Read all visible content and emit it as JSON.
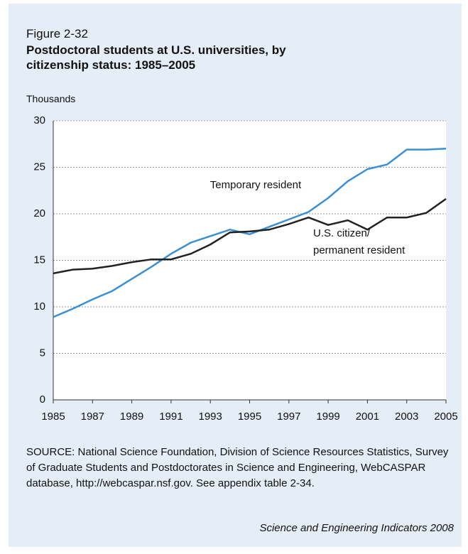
{
  "chart_data": {
    "type": "line",
    "figure_label": "Figure 2-32",
    "title": "Postdoctoral students at U.S. universities, by citizenship status: 1985–2005",
    "y_axis_label": "Thousands",
    "x": [
      1985,
      1986,
      1987,
      1988,
      1989,
      1990,
      1991,
      1992,
      1993,
      1994,
      1995,
      1996,
      1997,
      1998,
      1999,
      2000,
      2001,
      2002,
      2003,
      2004,
      2005
    ],
    "series": [
      {
        "name": "Temporary resident",
        "color": "#3b8fd3",
        "values": [
          8.9,
          9.8,
          10.8,
          11.7,
          13.0,
          14.3,
          15.7,
          16.9,
          17.6,
          18.3,
          17.8,
          18.6,
          19.4,
          20.2,
          21.7,
          23.5,
          24.8,
          25.3,
          26.9,
          26.9,
          27.0
        ]
      },
      {
        "name": "U.S. citizen/\npermanent resident",
        "color": "#222222",
        "values": [
          13.6,
          14.0,
          14.1,
          14.4,
          14.8,
          15.1,
          15.1,
          15.7,
          16.7,
          18.0,
          18.1,
          18.3,
          18.9,
          19.6,
          18.8,
          19.3,
          18.3,
          19.6,
          19.6,
          20.1,
          21.6
        ]
      }
    ],
    "xlim": [
      1985,
      2005
    ],
    "xticks": [
      1985,
      1987,
      1989,
      1991,
      1993,
      1995,
      1997,
      1999,
      2001,
      2003,
      2005
    ],
    "ylim": [
      0,
      30
    ],
    "yticks": [
      0,
      5,
      10,
      15,
      20,
      25,
      30
    ],
    "grid": true,
    "source": "SOURCE: National Science Foundation, Division of Science Resources Statistics, Survey of Graduate Students and Postdoctorates in Science and Engineering, WebCASPAR database, http://webcaspar.nsf.gov. See appendix table 2-34.",
    "credit": "Science and Engineering Indicators 2008"
  }
}
